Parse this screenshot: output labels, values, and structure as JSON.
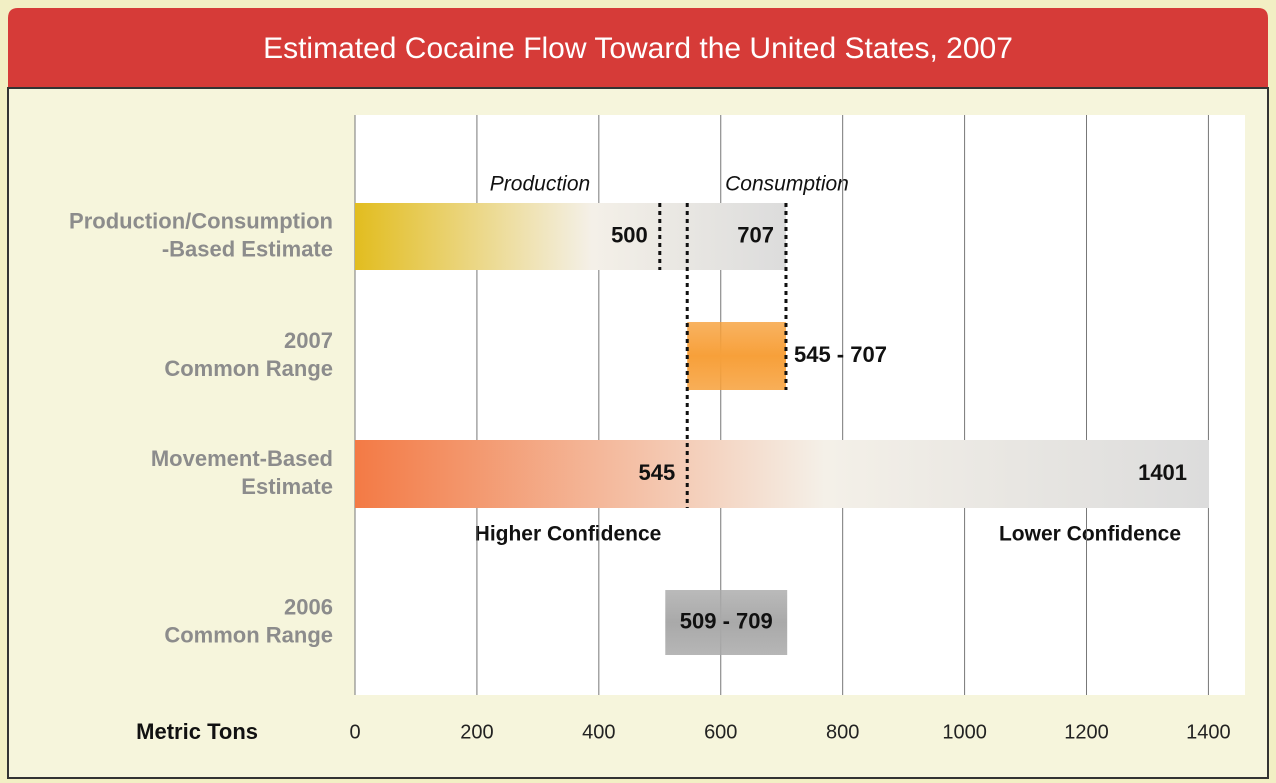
{
  "chart_data": {
    "type": "range-bar",
    "title": "Estimated Cocaine Flow Toward the United States, 2007",
    "xlabel": "Metric Tons",
    "xlim": [
      0,
      1460
    ],
    "xticks": [
      0,
      200,
      400,
      600,
      800,
      1000,
      1200,
      1400
    ],
    "grid": true,
    "annotations": [
      "Production",
      "Consumption",
      "Higher Confidence",
      "Lower Confidence"
    ],
    "rows": [
      {
        "label": [
          "Production/Consumption",
          "-Based Estimate"
        ],
        "start": 0,
        "end": 707,
        "color": "#e2bd1f",
        "markers": [
          500,
          707
        ]
      },
      {
        "label": [
          "2007",
          "Common Range"
        ],
        "start": 545,
        "end": 707,
        "color": "#f7a03a",
        "range_label": "545 - 707"
      },
      {
        "label": [
          "Movement-Based",
          "Estimate"
        ],
        "start": 0,
        "end": 1401,
        "color": "#f37a45",
        "markers": [
          545,
          1401
        ]
      },
      {
        "label": [
          "2006",
          "Common Range"
        ],
        "start": 509,
        "end": 709,
        "color": "#a9a9a9",
        "range_label": "509 - 709"
      }
    ]
  }
}
